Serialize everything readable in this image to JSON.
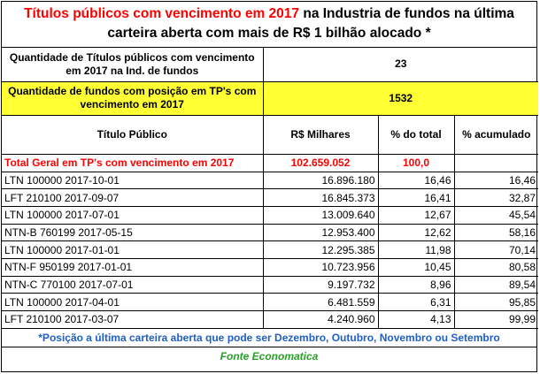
{
  "title": {
    "part_red": "Títulos públicos com vencimento em 2017",
    "part_black_1": " na Industria de fundos  na última",
    "line2": "carteira aberta com mais de R$ 1 bilhão alocado *"
  },
  "summary": [
    {
      "label": "Quantidade de Títulos públicos com vencimento em 2017 na Ind. de fundos",
      "value": "23"
    },
    {
      "label": "Quantidade de fundos com posição em TP's com vencimento em 2017",
      "value": "1532"
    }
  ],
  "columns": [
    "Título Público",
    "R$ Milhares",
    "% do total",
    "% acumulado"
  ],
  "total": {
    "label": "Total Geral em TP's com vencimento em 2017",
    "value": "102.659.052",
    "pct": "100,0",
    "acc": ""
  },
  "rows": [
    {
      "title": "LTN 100000 2017-10-01",
      "value": "16.896.180",
      "pct": "16,46",
      "acc": "16,46"
    },
    {
      "title": "LFT 210100 2017-09-07",
      "value": "16.845.373",
      "pct": "16,41",
      "acc": "32,87"
    },
    {
      "title": "LTN 100000 2017-07-01",
      "value": "13.009.640",
      "pct": "12,67",
      "acc": "45,54"
    },
    {
      "title": "NTN-B 760199 2017-05-15",
      "value": "12.953.400",
      "pct": "12,62",
      "acc": "58,16"
    },
    {
      "title": "LTN 100000 2017-01-01",
      "value": "12.295.385",
      "pct": "11,98",
      "acc": "70,14"
    },
    {
      "title": "NTN-F 950199 2017-01-01",
      "value": "10.723.956",
      "pct": "10,45",
      "acc": "80,58"
    },
    {
      "title": "NTN-C 770100 2017-07-01",
      "value": "9.197.732",
      "pct": "8,96",
      "acc": "89,54"
    },
    {
      "title": "LTN 100000 2017-04-01",
      "value": "6.481.559",
      "pct": "6,31",
      "acc": "95,85"
    },
    {
      "title": "LFT 210100 2017-03-07",
      "value": "4.240.960",
      "pct": "4,13",
      "acc": "99,99"
    }
  ],
  "footer": "*Posição a última carteira aberta que pode ser Dezembro, Outubro, Novembro ou Setembro",
  "source": "Fonte Economatica",
  "colors": {
    "title_red": "#ff0000",
    "highlight_yellow": "#ffff33",
    "footer_blue": "#1f5fc4",
    "source_green": "#2aa02a"
  }
}
